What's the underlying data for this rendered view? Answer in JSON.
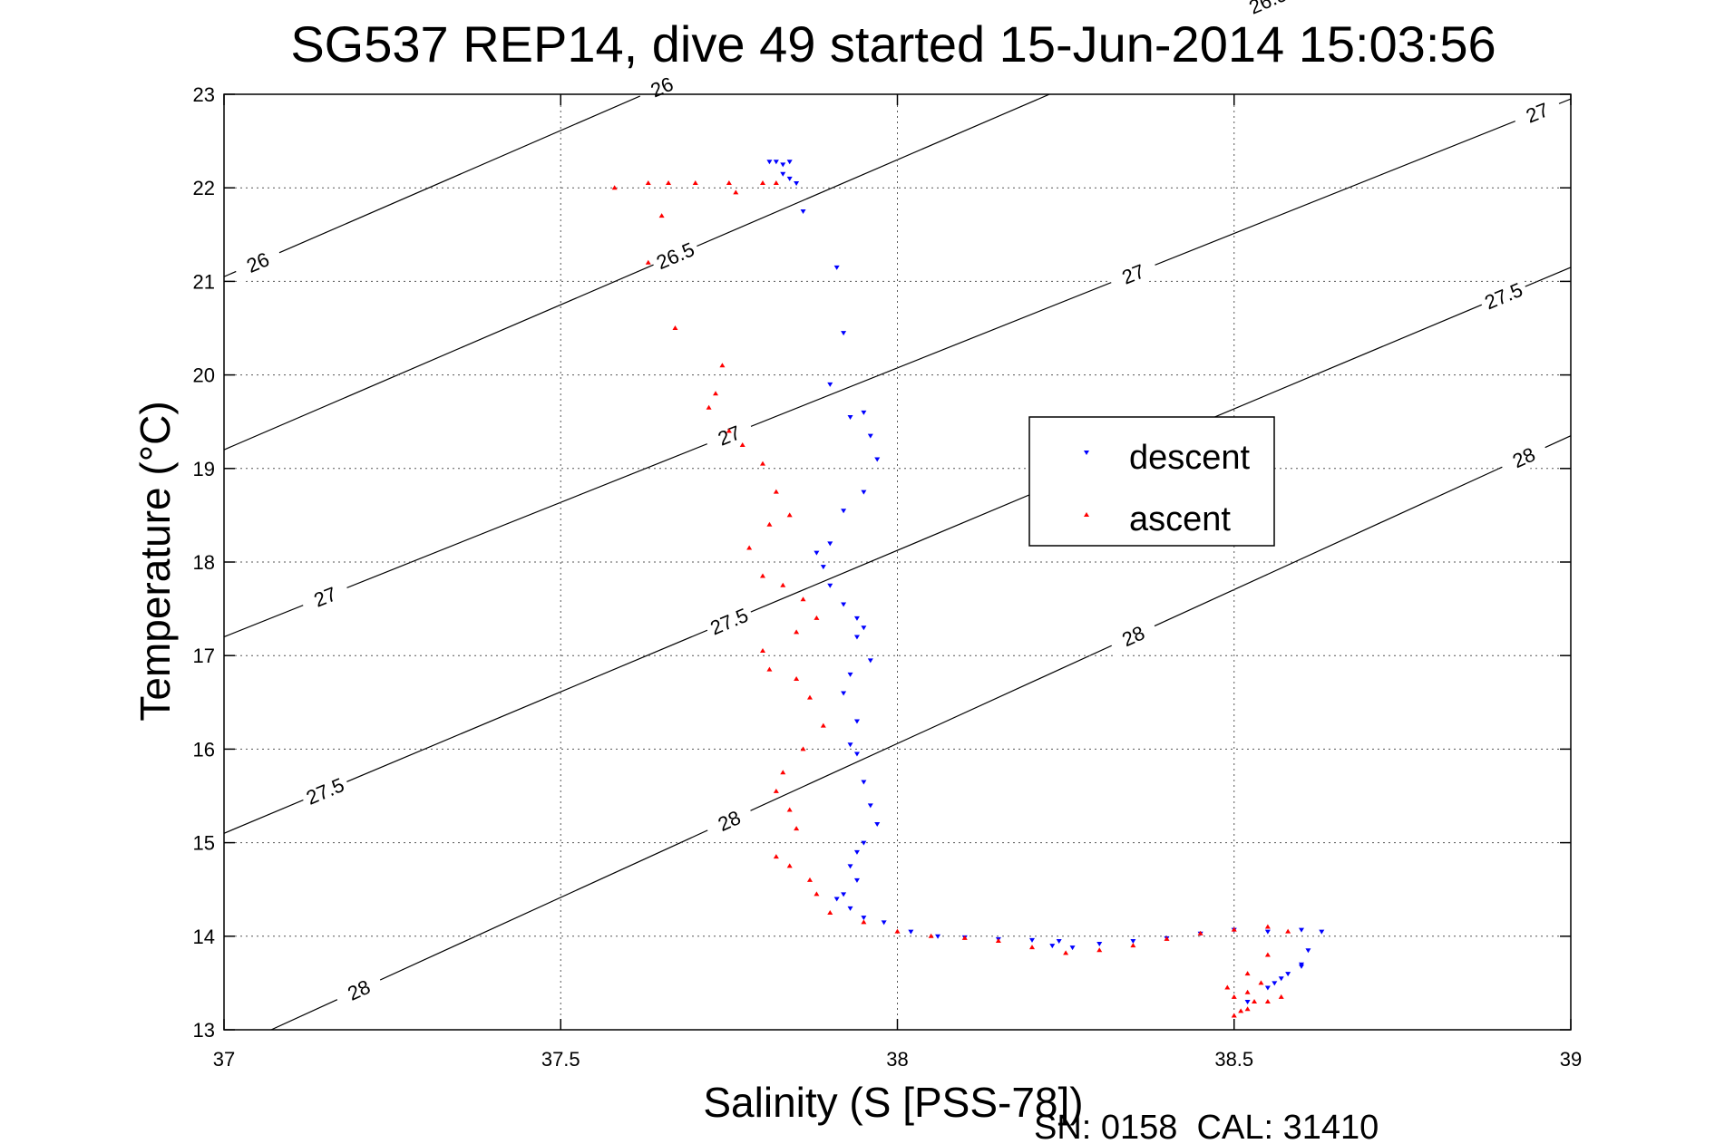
{
  "chart_data": {
    "type": "scatter",
    "title": "SG537 REP14, dive 49 started 15-Jun-2014 15:03:56",
    "xlabel": "Salinity (S [PSS-78])",
    "ylabel": "Temperature (°C)",
    "xlim": [
      37,
      39
    ],
    "ylim": [
      13,
      23
    ],
    "xticks": [
      37,
      37.5,
      38,
      38.5,
      39
    ],
    "xtick_labels": [
      "37",
      "37.5",
      "38",
      "38.5",
      "39"
    ],
    "yticks": [
      13,
      14,
      15,
      16,
      17,
      18,
      19,
      20,
      21,
      22,
      23
    ],
    "ytick_labels": [
      "13",
      "14",
      "15",
      "16",
      "17",
      "18",
      "19",
      "20",
      "21",
      "22",
      "23"
    ],
    "grid": true,
    "legend_position": "center-right",
    "footer": "SN: 0158  CAL: 31410",
    "contours": [
      {
        "label": "26",
        "points": [
          [
            37.0,
            21.05
          ],
          [
            39.0,
            27.3
          ]
        ],
        "label_at": [
          [
            37.05,
            21.1
          ],
          [
            37.65,
            22.85
          ]
        ]
      },
      {
        "label": "26.5",
        "points": [
          [
            37.0,
            19.2
          ],
          [
            39.0,
            25.4
          ]
        ],
        "label_at": [
          [
            37.67,
            21.0
          ],
          [
            38.55,
            22.6
          ]
        ]
      },
      {
        "label": "27",
        "points": [
          [
            37.0,
            17.2
          ],
          [
            39.0,
            22.95
          ]
        ],
        "label_at": [
          [
            37.15,
            17.85
          ],
          [
            37.75,
            19.4
          ],
          [
            38.35,
            21.1
          ],
          [
            38.95,
            22.65
          ]
        ]
      },
      {
        "label": "27.5",
        "points": [
          [
            37.0,
            15.1
          ],
          [
            39.0,
            21.15
          ]
        ],
        "label_at": [
          [
            37.15,
            15.5
          ],
          [
            37.75,
            17.35
          ],
          [
            38.9,
            20.9
          ]
        ]
      },
      {
        "label": "28",
        "points": [
          [
            37.07,
            13.0
          ],
          [
            39.0,
            19.35
          ]
        ],
        "label_at": [
          [
            37.2,
            13.45
          ],
          [
            37.75,
            15.45
          ],
          [
            38.35,
            17.3
          ],
          [
            38.93,
            19.1
          ]
        ]
      }
    ],
    "series": [
      {
        "name": "descent",
        "color": "#0000ff",
        "marker": "triangle-down",
        "x": [
          37.81,
          37.82,
          37.83,
          37.84,
          37.85,
          37.84,
          37.83,
          37.86,
          37.91,
          37.92,
          37.9,
          37.93,
          37.95,
          37.96,
          37.97,
          37.95,
          37.92,
          37.9,
          37.88,
          37.89,
          37.9,
          37.92,
          37.94,
          37.95,
          37.94,
          37.96,
          37.93,
          37.92,
          37.94,
          37.93,
          37.94,
          37.95,
          37.96,
          37.97,
          37.95,
          37.94,
          37.93,
          37.94,
          37.92,
          37.91,
          37.93,
          37.95,
          37.98,
          38.02,
          38.06,
          38.1,
          38.15,
          38.2,
          38.24,
          38.23,
          38.26,
          38.3,
          38.35,
          38.4,
          38.45,
          38.5,
          38.55,
          38.6,
          38.63,
          38.61,
          38.6,
          38.58,
          38.57,
          38.6,
          38.56,
          38.55,
          38.52
        ],
        "y": [
          22.28,
          22.28,
          22.25,
          22.28,
          22.05,
          22.1,
          22.15,
          21.75,
          21.15,
          20.45,
          19.9,
          19.55,
          19.6,
          19.35,
          19.1,
          18.75,
          18.55,
          18.2,
          18.1,
          17.95,
          17.75,
          17.55,
          17.4,
          17.3,
          17.2,
          16.95,
          16.8,
          16.6,
          16.3,
          16.05,
          15.95,
          15.65,
          15.4,
          15.2,
          15.0,
          14.9,
          14.75,
          14.6,
          14.45,
          14.4,
          14.3,
          14.2,
          14.15,
          14.05,
          14.0,
          13.99,
          13.97,
          13.96,
          13.95,
          13.9,
          13.88,
          13.92,
          13.95,
          13.98,
          14.03,
          14.07,
          14.05,
          14.07,
          14.05,
          13.85,
          13.7,
          13.6,
          13.55,
          13.68,
          13.5,
          13.45,
          13.3
        ]
      },
      {
        "name": "ascent",
        "color": "#ff0000",
        "marker": "triangle-up",
        "x": [
          37.58,
          37.63,
          37.66,
          37.7,
          37.75,
          37.8,
          37.82,
          37.76,
          37.65,
          37.63,
          37.67,
          37.74,
          37.73,
          37.72,
          37.75,
          37.77,
          37.8,
          37.82,
          37.84,
          37.81,
          37.78,
          37.8,
          37.83,
          37.86,
          37.88,
          37.85,
          37.8,
          37.81,
          37.85,
          37.87,
          37.89,
          37.86,
          37.83,
          37.82,
          37.84,
          37.85,
          37.82,
          37.84,
          37.87,
          37.88,
          37.9,
          37.95,
          38.0,
          38.05,
          38.1,
          38.15,
          38.2,
          38.25,
          38.3,
          38.35,
          38.4,
          38.45,
          38.5,
          38.55,
          38.58,
          38.55,
          38.52,
          38.49,
          38.5,
          38.52,
          38.54,
          38.53,
          38.51,
          38.5,
          38.52,
          38.55,
          38.57
        ],
        "y": [
          22.0,
          22.05,
          22.05,
          22.05,
          22.05,
          22.05,
          22.05,
          21.95,
          21.7,
          21.2,
          20.5,
          20.1,
          19.8,
          19.65,
          19.4,
          19.25,
          19.05,
          18.75,
          18.5,
          18.4,
          18.15,
          17.85,
          17.75,
          17.6,
          17.4,
          17.25,
          17.05,
          16.85,
          16.75,
          16.55,
          16.25,
          16.0,
          15.75,
          15.55,
          15.35,
          15.15,
          14.85,
          14.75,
          14.6,
          14.45,
          14.25,
          14.15,
          14.05,
          14.0,
          13.98,
          13.95,
          13.88,
          13.82,
          13.85,
          13.9,
          13.97,
          14.03,
          14.07,
          14.1,
          14.05,
          13.8,
          13.6,
          13.45,
          13.35,
          13.4,
          13.5,
          13.3,
          13.2,
          13.15,
          13.22,
          13.3,
          13.35
        ]
      }
    ]
  }
}
